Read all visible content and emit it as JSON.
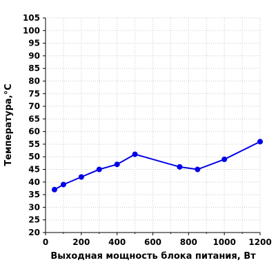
{
  "chart_data": {
    "type": "line",
    "title": "",
    "xlabel": "Выходная мощность блока питания, Вт",
    "ylabel": "Температура,°C",
    "xlim": [
      0,
      1200
    ],
    "ylim": [
      20,
      105
    ],
    "x_ticks": [
      0,
      200,
      400,
      600,
      800,
      1000,
      1200
    ],
    "y_ticks": [
      20,
      25,
      30,
      35,
      40,
      45,
      50,
      55,
      60,
      65,
      70,
      75,
      80,
      85,
      90,
      95,
      100,
      105
    ],
    "x_minor_step": 100,
    "grid": true,
    "series": [
      {
        "color": "#0000e6",
        "x": [
          50,
          100,
          200,
          300,
          400,
          500,
          750,
          850,
          1000,
          1200
        ],
        "y": [
          37,
          39,
          42,
          45,
          47,
          51,
          46,
          45,
          49,
          56
        ]
      }
    ]
  }
}
